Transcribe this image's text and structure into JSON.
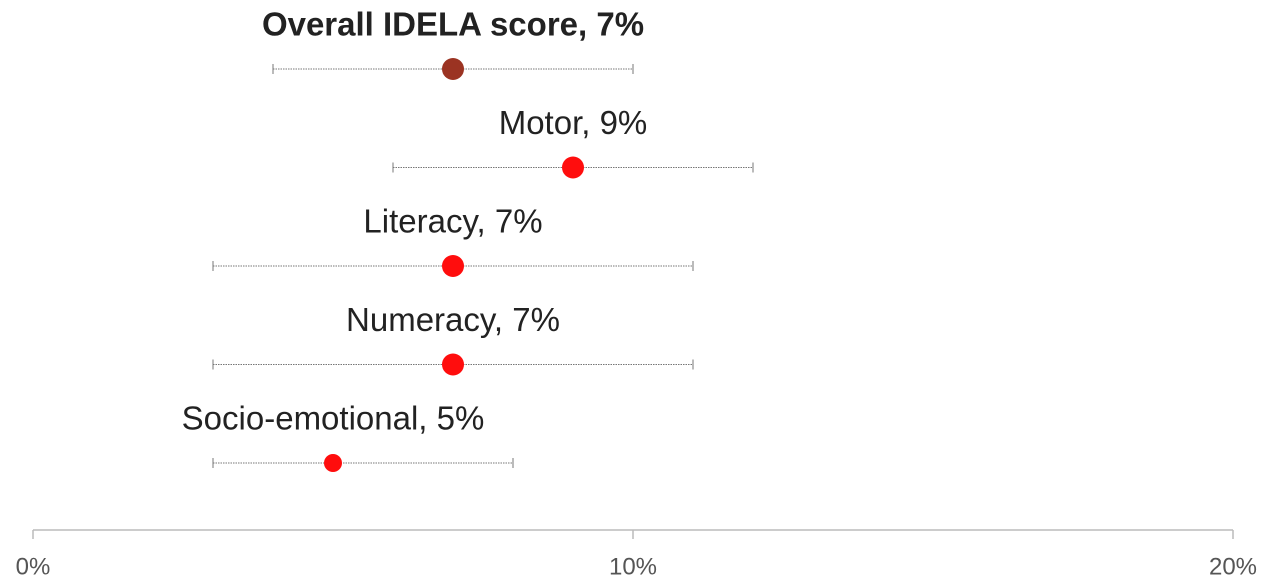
{
  "chart_data": {
    "type": "dot-errorbar",
    "categories": [
      "Overall IDELA score, 7%",
      "Motor, 9%",
      "Literacy, 7%",
      "Numeracy, 7%",
      "Socio-emotional, 5%"
    ],
    "values": [
      7,
      9,
      7,
      7,
      5
    ],
    "low": [
      4,
      6,
      3,
      3,
      3
    ],
    "high": [
      10,
      12,
      11,
      11,
      8
    ],
    "colors": [
      "#9b3322",
      "#ff0d0d",
      "#ff0d0d",
      "#ff0d0d",
      "#ff0d0d"
    ],
    "xlim": [
      0,
      20
    ],
    "xticks": [
      {
        "value": 0,
        "label": "0%"
      },
      {
        "value": 10,
        "label": "10%"
      },
      {
        "value": 20,
        "label": "20%"
      }
    ]
  }
}
